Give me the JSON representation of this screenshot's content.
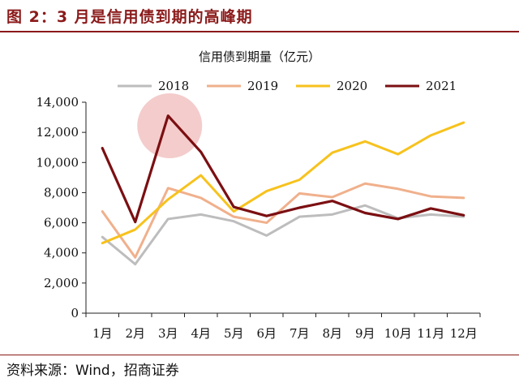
{
  "figure": {
    "title": "图 2：3 月是信用债到期的高峰期",
    "source": "资料来源：Wind，招商证券"
  },
  "chart_data": {
    "type": "line",
    "title": "信用债到期量（亿元）",
    "categories": [
      "1月",
      "2月",
      "3月",
      "4月",
      "5月",
      "6月",
      "7月",
      "8月",
      "9月",
      "10月",
      "11月",
      "12月"
    ],
    "ylim": [
      0,
      14000
    ],
    "yticks": [
      0,
      2000,
      4000,
      6000,
      8000,
      10000,
      12000,
      14000
    ],
    "ytick_labels": [
      "0",
      "2,000",
      "4,000",
      "6,000",
      "8,000",
      "10,000",
      "12,000",
      "14,000"
    ],
    "grid": false,
    "legend_position": "top",
    "series": [
      {
        "name": "2018",
        "color": "#bdbdbd",
        "values": [
          5050,
          3250,
          6250,
          6550,
          6100,
          5150,
          6400,
          6550,
          7150,
          6300,
          6550,
          6400
        ]
      },
      {
        "name": "2019",
        "color": "#f0b08c",
        "values": [
          6750,
          3700,
          8300,
          7650,
          6400,
          6000,
          7950,
          7700,
          8600,
          8250,
          7750,
          7650
        ]
      },
      {
        "name": "2020",
        "color": "#f7c21d",
        "values": [
          4650,
          5550,
          7550,
          9150,
          6750,
          8100,
          8850,
          10650,
          11400,
          10550,
          11800,
          12650
        ]
      },
      {
        "name": "2021",
        "color": "#7b0f12",
        "values": [
          10950,
          6050,
          13100,
          10700,
          7050,
          6450,
          7000,
          7450,
          6650,
          6250,
          6950,
          6500
        ]
      }
    ],
    "annotations": [
      {
        "type": "highlight-circle",
        "category": "3月",
        "color": "#f4cccc"
      }
    ]
  }
}
